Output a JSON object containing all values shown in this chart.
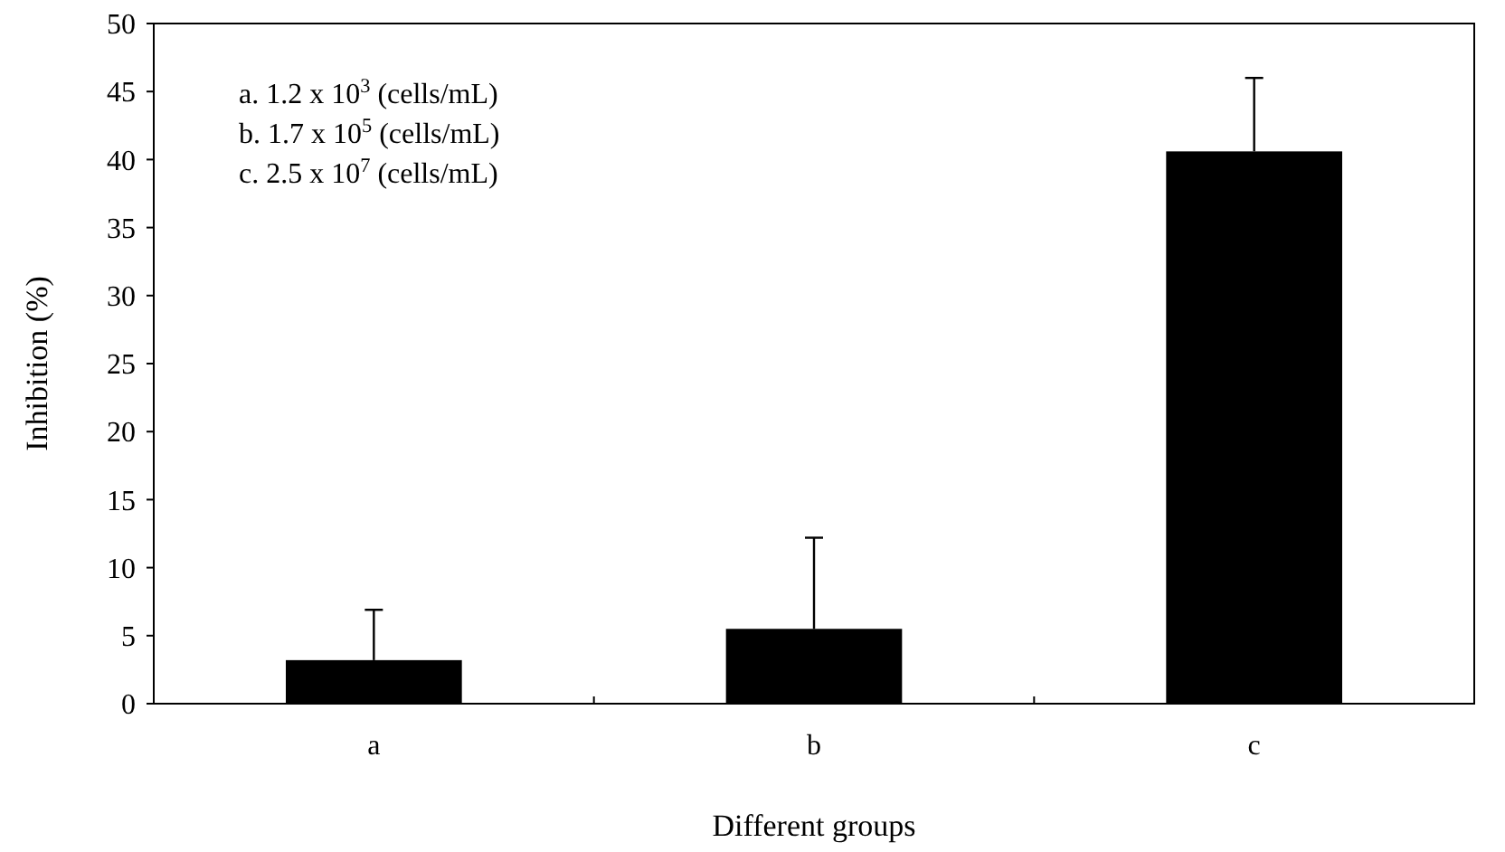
{
  "chart_data": {
    "type": "bar",
    "xlabel": "Different groups",
    "ylabel": "Inhibition (%)",
    "categories": [
      "a",
      "b",
      "c"
    ],
    "values": [
      3.2,
      5.5,
      40.6
    ],
    "color": "#000000",
    "errors": [
      [
        3.2,
        6.9
      ],
      [
        5.5,
        12.2
      ],
      [
        40.6,
        46.0
      ]
    ],
    "ylim": [
      0,
      50
    ],
    "yticks": [
      0,
      5,
      10,
      15,
      20,
      25,
      30,
      35,
      40,
      45,
      50
    ],
    "annotations": [
      "a. 1.2 x 10$^{3}$ (cells/mL)",
      "b. 1.7 x 10$^{5}$ (cells/mL)",
      "c. 2.5 x 10$^{7}$ (cells/mL)"
    ]
  }
}
